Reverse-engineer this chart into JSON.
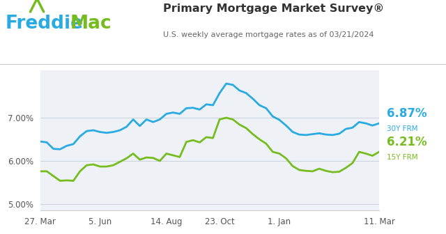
{
  "title": "Primary Mortgage Market Survey®",
  "subtitle": "U.S. weekly average mortgage rates as of 03/21/2024",
  "freddie_color": "#29abe2",
  "mac_color": "#77bc1f",
  "rate_30y": 6.87,
  "rate_15y": 6.21,
  "label_30y": "30Y FRM",
  "label_15y": "15Y FRM",
  "line_color_30y": "#29abe2",
  "line_color_15y": "#77bc1f",
  "plot_bg_color": "#eef2f7",
  "ylim": [
    4.85,
    8.1
  ],
  "ytick_labels": [
    "5.00%",
    "6.00%",
    "7.00%"
  ],
  "ytick_vals": [
    5.0,
    6.0,
    7.0
  ],
  "xtick_labels": [
    "27. Mar",
    "5. Jun",
    "14. Aug",
    "23. Oct",
    "1. Jan",
    "11. Mar"
  ],
  "xtick_positions": [
    0,
    9,
    19,
    27,
    36,
    51
  ],
  "x": [
    0,
    1,
    2,
    3,
    4,
    5,
    6,
    7,
    8,
    9,
    10,
    11,
    12,
    13,
    14,
    15,
    16,
    17,
    18,
    19,
    20,
    21,
    22,
    23,
    24,
    25,
    26,
    27,
    28,
    29,
    30,
    31,
    32,
    33,
    34,
    35,
    36,
    37,
    38,
    39,
    40,
    41,
    42,
    43,
    44,
    45,
    46,
    47,
    48,
    49,
    50,
    51
  ],
  "y_30y": [
    6.45,
    6.43,
    6.28,
    6.27,
    6.35,
    6.39,
    6.57,
    6.69,
    6.71,
    6.67,
    6.65,
    6.67,
    6.71,
    6.79,
    6.96,
    6.81,
    6.96,
    6.9,
    6.96,
    7.09,
    7.12,
    7.09,
    7.22,
    7.23,
    7.19,
    7.31,
    7.29,
    7.57,
    7.79,
    7.76,
    7.63,
    7.57,
    7.44,
    7.29,
    7.22,
    7.03,
    6.95,
    6.82,
    6.67,
    6.61,
    6.6,
    6.62,
    6.64,
    6.61,
    6.6,
    6.63,
    6.74,
    6.77,
    6.9,
    6.87,
    6.82,
    6.87
  ],
  "y_15y": [
    5.76,
    5.76,
    5.65,
    5.54,
    5.55,
    5.54,
    5.76,
    5.9,
    5.92,
    5.87,
    5.87,
    5.9,
    5.98,
    6.06,
    6.17,
    6.03,
    6.08,
    6.07,
    6.0,
    6.17,
    6.13,
    6.09,
    6.44,
    6.48,
    6.43,
    6.55,
    6.53,
    6.96,
    7.0,
    6.96,
    6.84,
    6.76,
    6.62,
    6.5,
    6.4,
    6.21,
    6.17,
    6.06,
    5.88,
    5.79,
    5.77,
    5.76,
    5.82,
    5.77,
    5.74,
    5.75,
    5.84,
    5.95,
    6.21,
    6.17,
    6.12,
    6.21
  ],
  "grid_color": "#c8d0dc",
  "title_color": "#333333",
  "subtitle_color": "#666666",
  "divider_color": "#cccccc",
  "tick_color": "#555555"
}
